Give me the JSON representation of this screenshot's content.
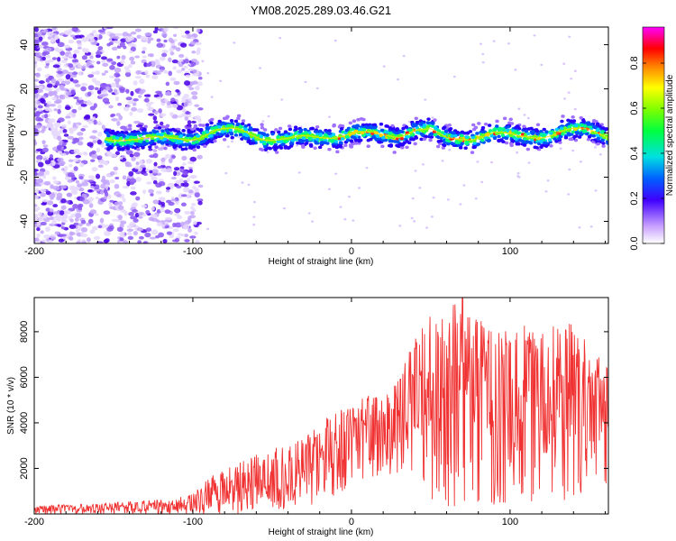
{
  "title": "YM08.2025.289.03.46.G21",
  "chart_data": [
    {
      "type": "heatmap",
      "name": "spectrogram",
      "xlabel": "Height of straight line (km)",
      "ylabel": "Frequency (Hz)",
      "xlim": [
        -200,
        162
      ],
      "ylim": [
        -50,
        48
      ],
      "xticks": [
        -200,
        -100,
        0,
        100
      ],
      "yticks": [
        -40,
        -20,
        0,
        20,
        40
      ],
      "colorbar": {
        "label": "Normalized spectral amplitude",
        "range": [
          0,
          0.96
        ],
        "ticks": [
          0.0,
          0.2,
          0.4,
          0.6,
          0.8
        ]
      },
      "ridge": {
        "description": "dominant frequency trace vs height",
        "x": [
          -155,
          -140,
          -120,
          -100,
          -85,
          -70,
          -55,
          -40,
          -25,
          -10,
          0,
          15,
          30,
          40,
          50,
          60,
          75,
          90,
          105,
          120,
          135,
          150,
          162
        ],
        "y": [
          -3,
          -2,
          -3,
          -2,
          1,
          1,
          -2,
          -3,
          -2,
          -1,
          0,
          -1,
          -1,
          2,
          1,
          -3,
          -2,
          0,
          -2,
          -1,
          1,
          1,
          -1
        ],
        "peak_amplitude_range": [
          -20,
          162
        ]
      },
      "noise_region": {
        "x_from": -200,
        "x_to": -95,
        "y_from": -50,
        "y_to": 48
      }
    },
    {
      "type": "line",
      "name": "snr",
      "xlabel": "Height of straight line (km)",
      "ylabel": "SNR (10 * v/v)",
      "xlim": [
        -200,
        162
      ],
      "ylim": [
        0,
        9500
      ],
      "xticks": [
        -200,
        -100,
        0,
        100
      ],
      "yticks": [
        2000,
        4000,
        6000,
        8000
      ],
      "color": "#f03232",
      "envelope": {
        "x": [
          -200,
          -150,
          -120,
          -100,
          -90,
          -75,
          -60,
          -45,
          -30,
          -20,
          -10,
          0,
          10,
          20,
          30,
          40,
          50,
          60,
          70,
          80,
          90,
          100,
          110,
          120,
          130,
          140,
          150,
          162
        ],
        "max": [
          350,
          500,
          650,
          900,
          1600,
          2100,
          2600,
          3000,
          3300,
          4000,
          4500,
          4800,
          5200,
          5300,
          6000,
          7800,
          8800,
          9000,
          9500,
          8600,
          8100,
          8000,
          8300,
          8200,
          8300,
          8500,
          7300,
          6500
        ],
        "min": [
          0,
          0,
          0,
          0,
          0,
          0,
          100,
          200,
          300,
          500,
          700,
          1300,
          1600,
          1700,
          1800,
          1900,
          300,
          200,
          500,
          400,
          400,
          500,
          500,
          600,
          500,
          500,
          600,
          800
        ]
      },
      "peak": {
        "x": 70,
        "y": 9500
      }
    }
  ]
}
